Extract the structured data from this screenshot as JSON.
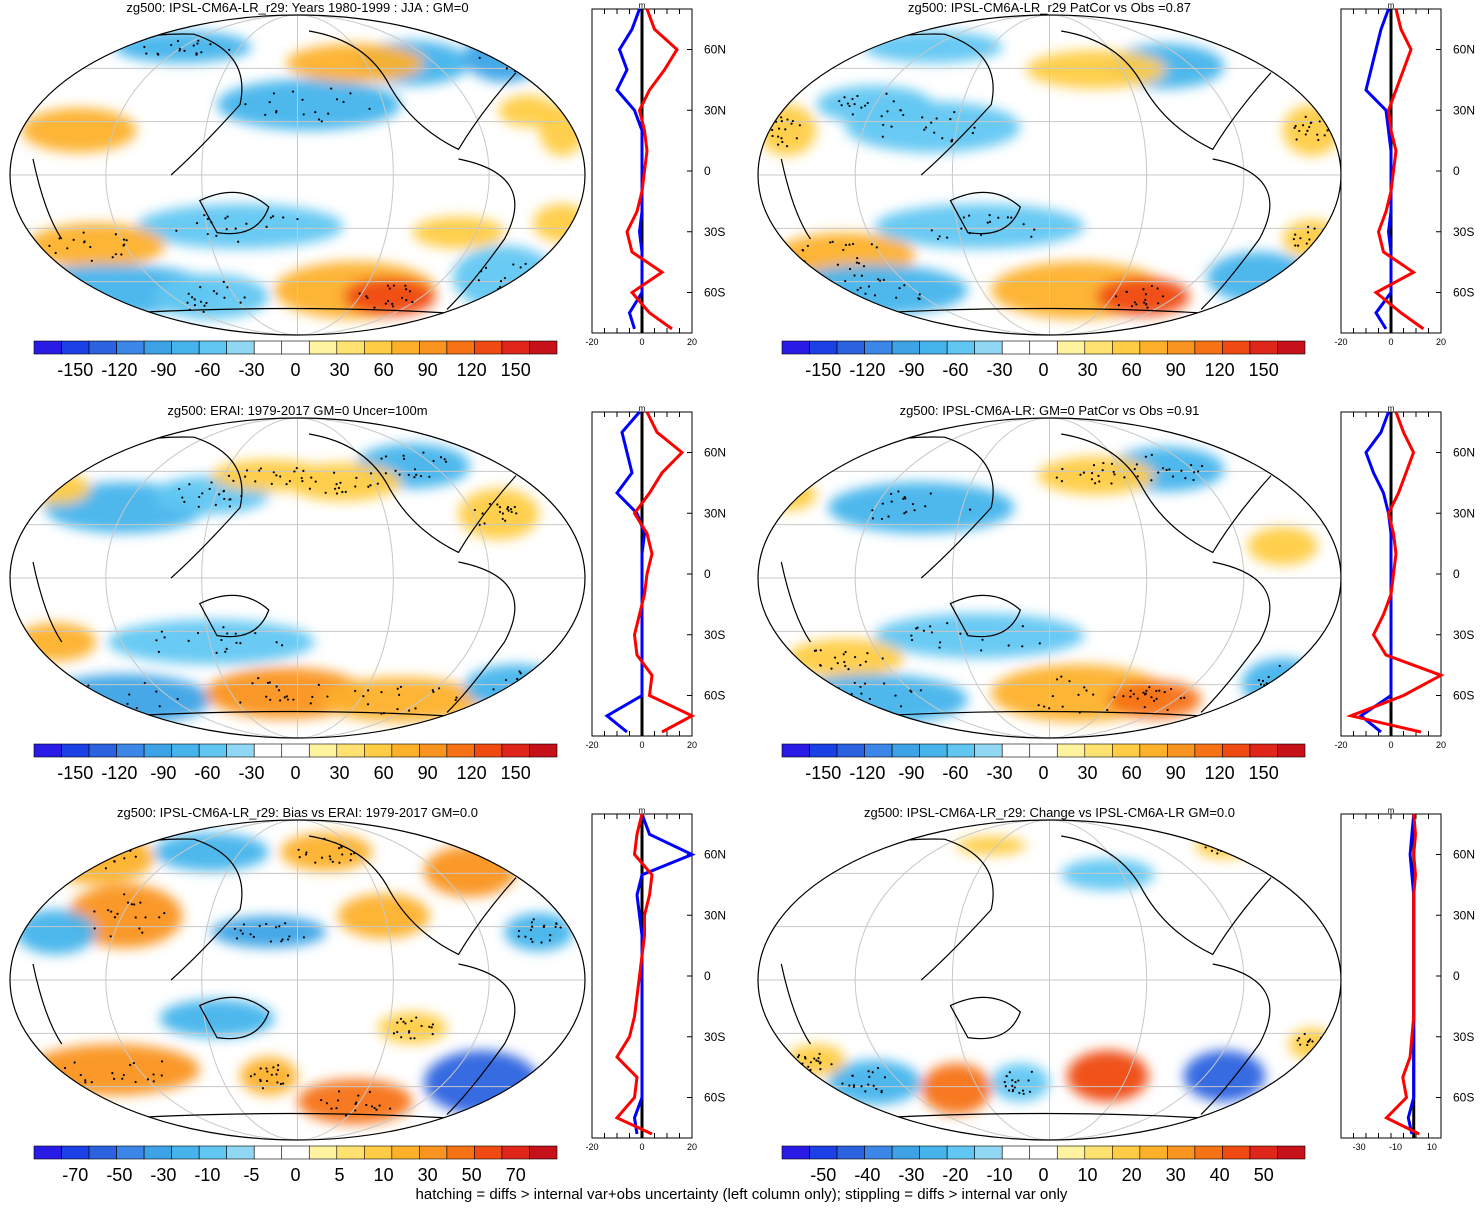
{
  "footnote": "hatching = diffs > internal var+obs uncertainty (left column only); stippling = diffs > internal var only",
  "palette": [
    "#2a1ae6",
    "#1a40e6",
    "#2b62e0",
    "#3b86e6",
    "#3da3e6",
    "#45b4ec",
    "#61c7f2",
    "#8fd7f2",
    "#ffffff",
    "#ffffff",
    "#fff3a0",
    "#ffe270",
    "#ffcc45",
    "#fdb12a",
    "#fa9420",
    "#f77215",
    "#ef4a12",
    "#e0261a",
    "#c6101a"
  ],
  "colors": {
    "zonal_red": "#ff0000",
    "zonal_blue": "#0000ff",
    "zero_line": "#000000",
    "land": "#000000"
  },
  "chart_data": [
    {
      "type": "heatmap",
      "title": "zg500: IPSL-CM6A-LR_r29: Years 1980-1999 : JJA : GM=0",
      "colorbar_labels": [
        "-150",
        "-120",
        "-90",
        "-60",
        "-30",
        "0",
        "30",
        "60",
        "90",
        "120",
        "150"
      ],
      "zonal_mean": {
        "unit": "m",
        "xlim": [
          -20,
          20
        ],
        "x_ticks": [
          "-20",
          "0",
          "20"
        ],
        "y_ticks": [
          "60N",
          "30N",
          "0",
          "30S",
          "60S"
        ],
        "lat": [
          80,
          70,
          60,
          50,
          40,
          30,
          20,
          10,
          0,
          -10,
          -20,
          -30,
          -40,
          -50,
          -60,
          -70,
          -78
        ],
        "red": [
          2,
          5,
          14,
          9,
          3,
          -1,
          1,
          2,
          1,
          0,
          -2,
          -6,
          -4,
          8,
          -4,
          3,
          12
        ],
        "blue": [
          -1,
          -4,
          -9,
          -6,
          -10,
          -3,
          0,
          0,
          0,
          0,
          0,
          -1,
          0,
          0,
          0,
          -5,
          -3
        ]
      }
    },
    {
      "type": "heatmap",
      "title": "zg500: IPSL-CM6A-LR_r29 PatCor vs Obs =0.87",
      "colorbar_labels": [
        "-150",
        "-120",
        "-90",
        "-60",
        "-30",
        "0",
        "30",
        "60",
        "90",
        "120",
        "150"
      ],
      "zonal_mean": {
        "unit": "m",
        "xlim": [
          -20,
          20
        ],
        "x_ticks": [
          "-20",
          "0",
          "20"
        ],
        "y_ticks": [
          "60N",
          "30N",
          "0",
          "30S",
          "60S"
        ],
        "lat": [
          80,
          70,
          60,
          50,
          40,
          30,
          20,
          10,
          0,
          -10,
          -20,
          -30,
          -40,
          -50,
          -60,
          -70,
          -78
        ],
        "red": [
          2,
          4,
          8,
          5,
          2,
          -1,
          0,
          2,
          1,
          0,
          -2,
          -5,
          -3,
          9,
          -6,
          4,
          13
        ],
        "blue": [
          -1,
          -4,
          -6,
          -8,
          -10,
          -2,
          -1,
          0,
          0,
          0,
          0,
          -1,
          0,
          0,
          0,
          -6,
          -2
        ]
      }
    },
    {
      "type": "heatmap",
      "title": "zg500: ERAI: 1979-2017 GM=0 Uncer=100m",
      "colorbar_labels": [
        "-150",
        "-120",
        "-90",
        "-60",
        "-30",
        "0",
        "30",
        "60",
        "90",
        "120",
        "150"
      ],
      "zonal_mean": {
        "unit": "m",
        "xlim": [
          -20,
          20
        ],
        "x_ticks": [
          "-20",
          "0",
          "20"
        ],
        "y_ticks": [
          "60N",
          "30N",
          "0",
          "30S",
          "60S"
        ],
        "lat": [
          80,
          70,
          60,
          50,
          40,
          30,
          20,
          10,
          0,
          -10,
          -20,
          -30,
          -40,
          -50,
          -60,
          -70,
          -78
        ],
        "red": [
          2,
          6,
          16,
          8,
          3,
          -3,
          2,
          4,
          2,
          1,
          -1,
          -3,
          -2,
          4,
          3,
          20,
          8
        ],
        "blue": [
          -1,
          -8,
          -6,
          -4,
          -10,
          -2,
          1,
          0,
          0,
          0,
          0,
          0,
          0,
          0,
          0,
          -14,
          -6
        ]
      }
    },
    {
      "type": "heatmap",
      "title": "zg500: IPSL-CM6A-LR: GM=0 PatCor vs Obs =0.91",
      "colorbar_labels": [
        "-150",
        "-120",
        "-90",
        "-60",
        "-30",
        "0",
        "30",
        "60",
        "90",
        "120",
        "150"
      ],
      "zonal_mean": {
        "unit": "m",
        "xlim": [
          -20,
          20
        ],
        "x_ticks": [
          "-20",
          "0",
          "20"
        ],
        "y_ticks": [
          "60N",
          "30N",
          "0",
          "30S",
          "60S"
        ],
        "lat": [
          80,
          70,
          60,
          50,
          40,
          30,
          20,
          10,
          0,
          -10,
          -20,
          -30,
          -40,
          -50,
          -60,
          -70,
          -78
        ],
        "red": [
          2,
          5,
          9,
          6,
          3,
          -1,
          1,
          2,
          1,
          0,
          -3,
          -7,
          -2,
          20,
          5,
          -16,
          12
        ],
        "blue": [
          -1,
          -4,
          -10,
          -7,
          -3,
          -1,
          0,
          0,
          0,
          0,
          0,
          0,
          0,
          0,
          0,
          -12,
          -4
        ]
      }
    },
    {
      "type": "heatmap",
      "title": "zg500: IPSL-CM6A-LR_r29: Bias vs ERAI: 1979-2017 GM=0.0",
      "colorbar_labels": [
        "-70",
        "-50",
        "-30",
        "-10",
        "-5",
        "0",
        "5",
        "10",
        "30",
        "50",
        "70"
      ],
      "zonal_mean": {
        "unit": "m",
        "xlim": [
          -20,
          20
        ],
        "x_ticks": [
          "-20",
          "0",
          "20"
        ],
        "y_ticks": [
          "60N",
          "30N",
          "0",
          "30S",
          "60S"
        ],
        "lat": [
          80,
          70,
          60,
          50,
          40,
          30,
          20,
          10,
          0,
          -10,
          -20,
          -30,
          -40,
          -50,
          -60,
          -70,
          -78
        ],
        "red": [
          0,
          -2,
          -3,
          4,
          3,
          1,
          1,
          0,
          -1,
          -2,
          -3,
          -5,
          -10,
          -2,
          -3,
          -10,
          4
        ],
        "blue": [
          0,
          3,
          20,
          0,
          -2,
          -1,
          0,
          0,
          0,
          0,
          0,
          0,
          0,
          0,
          0,
          -3,
          -2
        ]
      }
    },
    {
      "type": "heatmap",
      "title": "zg500: IPSL-CM6A-LR_r29: Change vs IPSL-CM6A-LR GM=0.0",
      "colorbar_labels": [
        "-50",
        "-40",
        "-30",
        "-20",
        "-10",
        "0",
        "10",
        "20",
        "30",
        "40",
        "50"
      ],
      "zonal_mean": {
        "unit": "m",
        "xlim": [
          -40,
          15
        ],
        "x_ticks": [
          "-30",
          "-10",
          "10"
        ],
        "y_ticks": [
          "60N",
          "30N",
          "0",
          "30S",
          "60S"
        ],
        "lat": [
          80,
          70,
          60,
          50,
          40,
          30,
          20,
          10,
          0,
          -10,
          -20,
          -30,
          -40,
          -50,
          -60,
          -70,
          -78
        ],
        "red": [
          0,
          1,
          0,
          1,
          0,
          0,
          0,
          0,
          0,
          0,
          0,
          -1,
          -2,
          -6,
          -4,
          -15,
          3
        ],
        "blue": [
          0,
          -1,
          -2,
          -1,
          0,
          0,
          0,
          0,
          0,
          0,
          0,
          0,
          0,
          0,
          0,
          -3,
          -1
        ]
      }
    }
  ]
}
